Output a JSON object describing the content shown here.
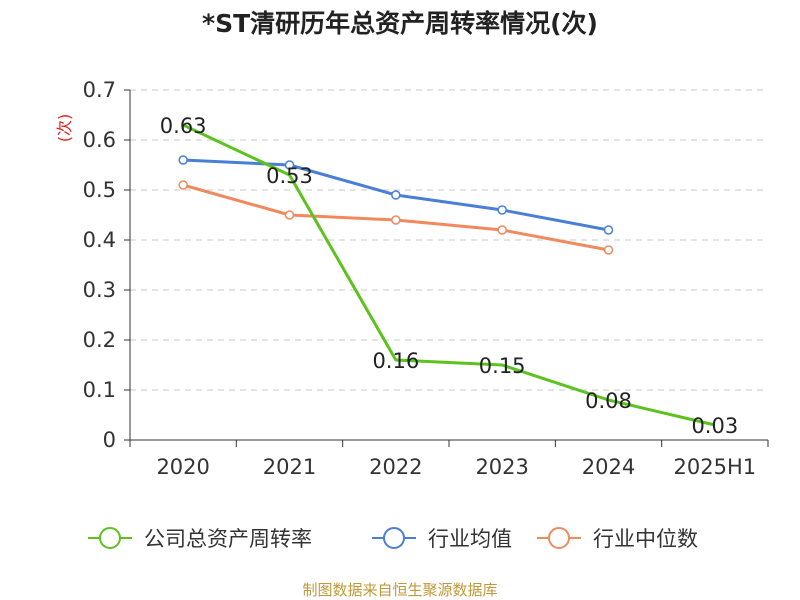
{
  "chart_data": {
    "type": "line",
    "title": "*ST清研历年总资产周转率情况(次)",
    "ylabel": "(次)",
    "xlabel": "",
    "categories": [
      "2020",
      "2021",
      "2022",
      "2023",
      "2024",
      "2025H1"
    ],
    "ylim": [
      0,
      0.7
    ],
    "yticks": [
      "0",
      "0.1",
      "0.2",
      "0.3",
      "0.4",
      "0.5",
      "0.6",
      "0.7"
    ],
    "grid": true,
    "legend_position": "bottom",
    "series": [
      {
        "name": "公司总资产周转率",
        "color": "#5bc21e",
        "values": [
          0.63,
          0.53,
          0.16,
          0.15,
          0.08,
          0.03
        ],
        "labels": [
          "0.63",
          "0.53",
          "0.16",
          "0.15",
          "0.08",
          "0.03"
        ]
      },
      {
        "name": "行业均值",
        "color": "#4a7fd6",
        "values": [
          0.56,
          0.55,
          0.49,
          0.46,
          0.42,
          null
        ]
      },
      {
        "name": "行业中位数",
        "color": "#f08a5d",
        "values": [
          0.51,
          0.45,
          0.44,
          0.42,
          0.38,
          null
        ]
      }
    ]
  },
  "footer": {
    "source": "制图数据来自恒生聚源数据库"
  }
}
